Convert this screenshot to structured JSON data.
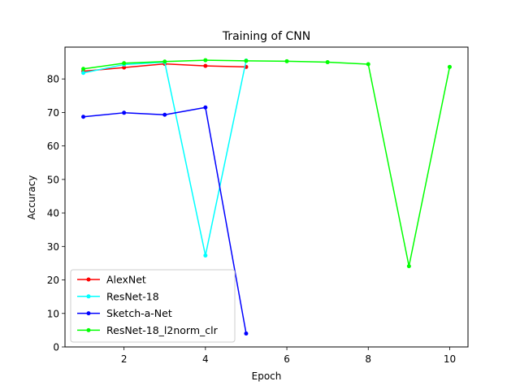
{
  "chart_data": {
    "type": "line",
    "title": "Training of CNN",
    "xlabel": "Epoch",
    "ylabel": "Accuracy",
    "xlim": [
      0.55,
      10.45
    ],
    "ylim": [
      0,
      89.5
    ],
    "xticks": [
      2,
      4,
      6,
      8,
      10
    ],
    "yticks": [
      0,
      10,
      20,
      30,
      40,
      50,
      60,
      70,
      80
    ],
    "grid": false,
    "legend_position": "lower-left",
    "series": [
      {
        "name": "AlexNet",
        "color": "#ff0000",
        "marker": "point",
        "x": [
          1,
          2,
          3,
          4,
          5
        ],
        "y": [
          82.3,
          83.4,
          84.5,
          83.9,
          83.6
        ]
      },
      {
        "name": "ResNet-18",
        "color": "#00ffff",
        "marker": "point",
        "x": [
          1,
          2,
          3,
          4,
          5
        ],
        "y": [
          81.8,
          84.3,
          85.0,
          27.3,
          85.5
        ]
      },
      {
        "name": "Sketch-a-Net",
        "color": "#0000ff",
        "marker": "point",
        "x": [
          1,
          2,
          3,
          4,
          5
        ],
        "y": [
          68.7,
          69.9,
          69.3,
          71.5,
          4.0
        ]
      },
      {
        "name": "ResNet-18_l2norm_clr",
        "color": "#00ff00",
        "marker": "point",
        "x": [
          1,
          2,
          3,
          4,
          5,
          6,
          7,
          8,
          9,
          10
        ],
        "y": [
          83.0,
          84.7,
          85.2,
          85.6,
          85.4,
          85.3,
          85.0,
          84.4,
          24.1,
          83.6
        ]
      }
    ]
  }
}
